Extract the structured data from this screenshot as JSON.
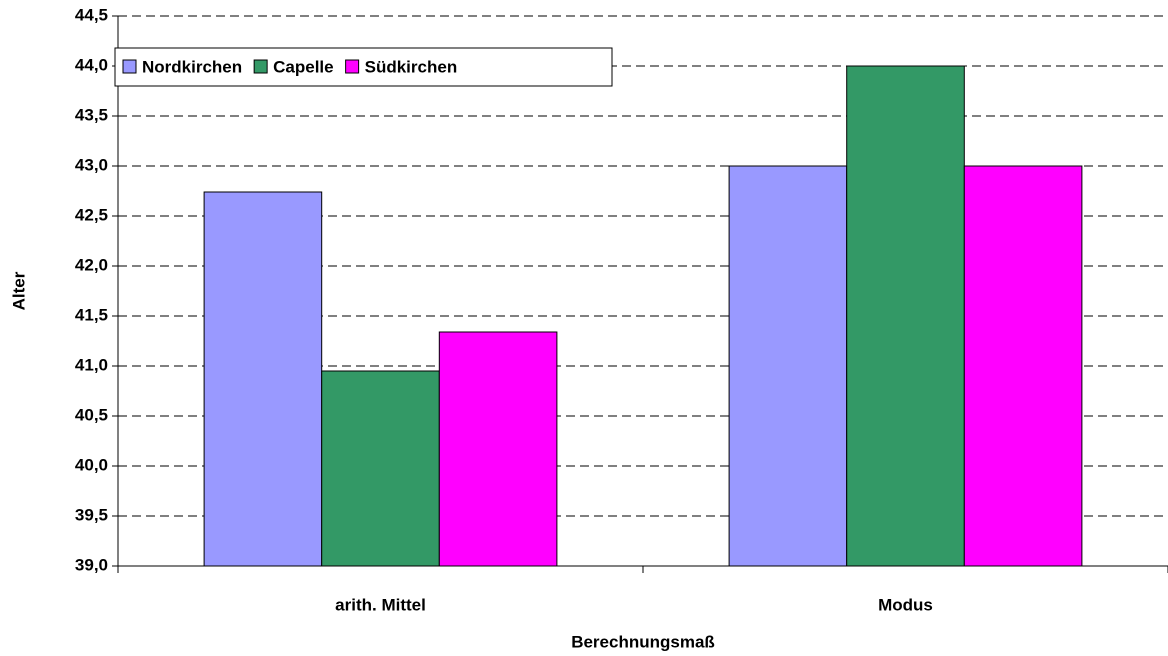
{
  "chart_data": {
    "type": "bar",
    "x_label": "Berechnungsmaß",
    "y_label": "Alter",
    "categories": [
      "arith. Mittel",
      "Modus"
    ],
    "series": [
      {
        "name": "Nordkirchen",
        "color": "#9999ff",
        "values": [
          42.74,
          43.0
        ]
      },
      {
        "name": "Capelle",
        "color": "#339966",
        "values": [
          40.95,
          44.0
        ]
      },
      {
        "name": "Südkirchen",
        "color": "#ff00ff",
        "values": [
          41.34,
          43.0
        ]
      }
    ],
    "ylim": [
      39,
      44.5
    ],
    "yticks": [
      {
        "value": 39,
        "label": "39,0"
      },
      {
        "value": 39.5,
        "label": "39,5"
      },
      {
        "value": 40,
        "label": "40,0"
      },
      {
        "value": 40.5,
        "label": "40,5"
      },
      {
        "value": 41,
        "label": "41,0"
      },
      {
        "value": 41.5,
        "label": "41,5"
      },
      {
        "value": 42,
        "label": "42,0"
      },
      {
        "value": 42.5,
        "label": "42,5"
      },
      {
        "value": 43,
        "label": "43,0"
      },
      {
        "value": 43.5,
        "label": "43,5"
      },
      {
        "value": 44,
        "label": "44,0"
      },
      {
        "value": 44.5,
        "label": "44,5"
      }
    ],
    "grid": true,
    "legend": "top-left"
  }
}
